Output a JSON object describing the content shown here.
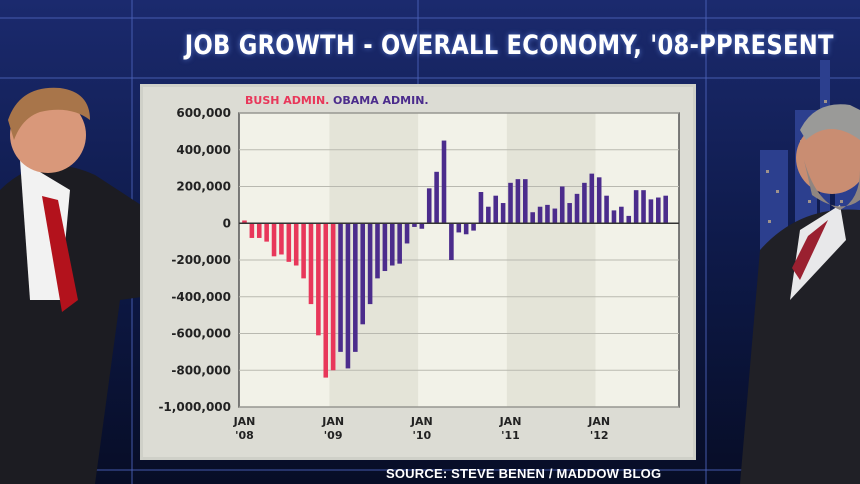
{
  "source": "SOURCE: STEVE BENEN / MADDOW BLOG",
  "colors": {
    "bush": "#e8375a",
    "obama": "#4b2c8c",
    "panel": "#f2f2e8",
    "shade": "#e4e4d8"
  },
  "chart_data": {
    "type": "bar",
    "title": "JOB GROWTH - OVERALL ECONOMY, '08-PPRESENT",
    "xlabel": "",
    "ylabel": "",
    "ylim": [
      -1000000,
      600000
    ],
    "yticks": [
      {
        "value": 600000,
        "label": "600,000"
      },
      {
        "value": 400000,
        "label": "400,000"
      },
      {
        "value": 200000,
        "label": "200,000"
      },
      {
        "value": 0,
        "label": "0"
      },
      {
        "value": -200000,
        "label": "-200,000"
      },
      {
        "value": -400000,
        "label": "-400,000"
      },
      {
        "value": -600000,
        "label": "-600,000"
      },
      {
        "value": -800000,
        "label": "-800,000"
      },
      {
        "value": -1000000,
        "label": "-1,000,000"
      }
    ],
    "xticks": [
      {
        "month_index": 0,
        "line1": "JAN",
        "line2": "'08"
      },
      {
        "month_index": 12,
        "line1": "JAN",
        "line2": "'09"
      },
      {
        "month_index": 24,
        "line1": "JAN",
        "line2": "'10"
      },
      {
        "month_index": 36,
        "line1": "JAN",
        "line2": "'11"
      },
      {
        "month_index": 48,
        "line1": "JAN",
        "line2": "'12"
      }
    ],
    "grid": true,
    "legend_position": "top-left",
    "series": [
      {
        "name": "BUSH ADMIN.",
        "color": "#e8375a",
        "start_index": 0,
        "values": [
          15000,
          -80000,
          -80000,
          -100000,
          -180000,
          -170000,
          -210000,
          -230000,
          -300000,
          -440000,
          -610000,
          -840000,
          -800000
        ]
      },
      {
        "name": "OBAMA ADMIN.",
        "color": "#4b2c8c",
        "start_index": 13,
        "values": [
          -700000,
          -790000,
          -700000,
          -550000,
          -440000,
          -300000,
          -260000,
          -230000,
          -220000,
          -110000,
          -20000,
          -30000,
          190000,
          280000,
          450000,
          -200000,
          -50000,
          -60000,
          -40000,
          170000,
          90000,
          150000,
          110000,
          220000,
          240000,
          240000,
          60000,
          90000,
          100000,
          80000,
          200000,
          110000,
          160000,
          220000,
          270000,
          250000,
          150000,
          70000,
          90000,
          40000,
          180000,
          180000,
          130000,
          140000,
          150000
        ]
      }
    ]
  }
}
